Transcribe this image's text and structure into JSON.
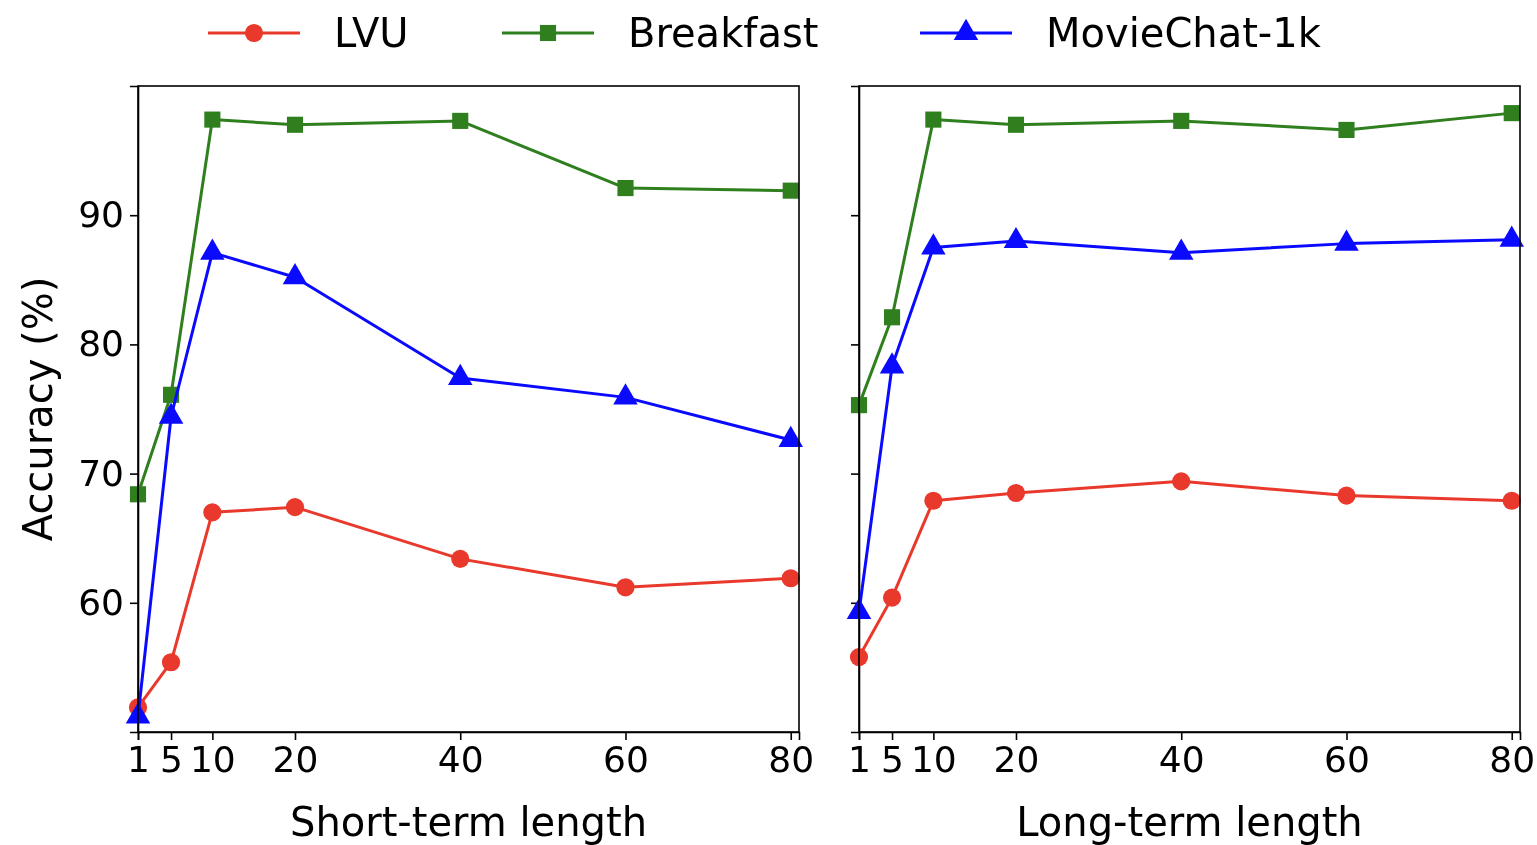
{
  "chart_data": [
    {
      "type": "line",
      "xlabel": "Short-term length",
      "ylabel": "Accuracy (%)",
      "x": [
        1,
        5,
        10,
        20,
        40,
        60,
        80
      ],
      "xlim": [
        1,
        81
      ],
      "xticks": [
        1,
        5,
        10,
        20,
        40,
        60,
        80
      ],
      "ylim": [
        50,
        100
      ],
      "yticks": [
        60,
        70,
        80,
        90
      ],
      "legend": "top",
      "grid": false,
      "series": [
        {
          "name": "LVU",
          "color": "#e8392c",
          "marker": "circle",
          "values": [
            51.9,
            55.4,
            67.0,
            67.4,
            63.4,
            61.2,
            61.9
          ]
        },
        {
          "name": "Breakfast",
          "color": "#2f7f1f",
          "marker": "square",
          "values": [
            68.4,
            76.1,
            97.4,
            97.0,
            97.3,
            92.1,
            91.9
          ]
        },
        {
          "name": "MovieChat-1k",
          "color": "#0a0aff",
          "marker": "triangle",
          "values": [
            51.2,
            74.4,
            87.1,
            85.2,
            77.4,
            75.9,
            72.6
          ]
        }
      ]
    },
    {
      "type": "line",
      "xlabel": "Long-term length",
      "x": [
        1,
        5,
        10,
        20,
        40,
        60,
        80
      ],
      "xlim": [
        1,
        81
      ],
      "xticks": [
        1,
        5,
        10,
        20,
        40,
        60,
        80
      ],
      "ylim": [
        50,
        100
      ],
      "yticks": [
        60,
        70,
        80,
        90
      ],
      "tick_labels": "x",
      "grid": false,
      "series": [
        {
          "color": "#e8392c",
          "marker": "circle",
          "values": [
            55.8,
            60.4,
            67.9,
            68.5,
            69.4,
            68.3,
            67.9
          ]
        },
        {
          "color": "#2f7f1f",
          "marker": "square",
          "values": [
            75.3,
            82.1,
            97.4,
            97.0,
            97.3,
            96.6,
            97.9
          ]
        },
        {
          "color": "#0a0aff",
          "marker": "triangle",
          "values": [
            59.3,
            78.3,
            87.5,
            88.0,
            87.1,
            87.8,
            88.1
          ]
        }
      ]
    }
  ]
}
